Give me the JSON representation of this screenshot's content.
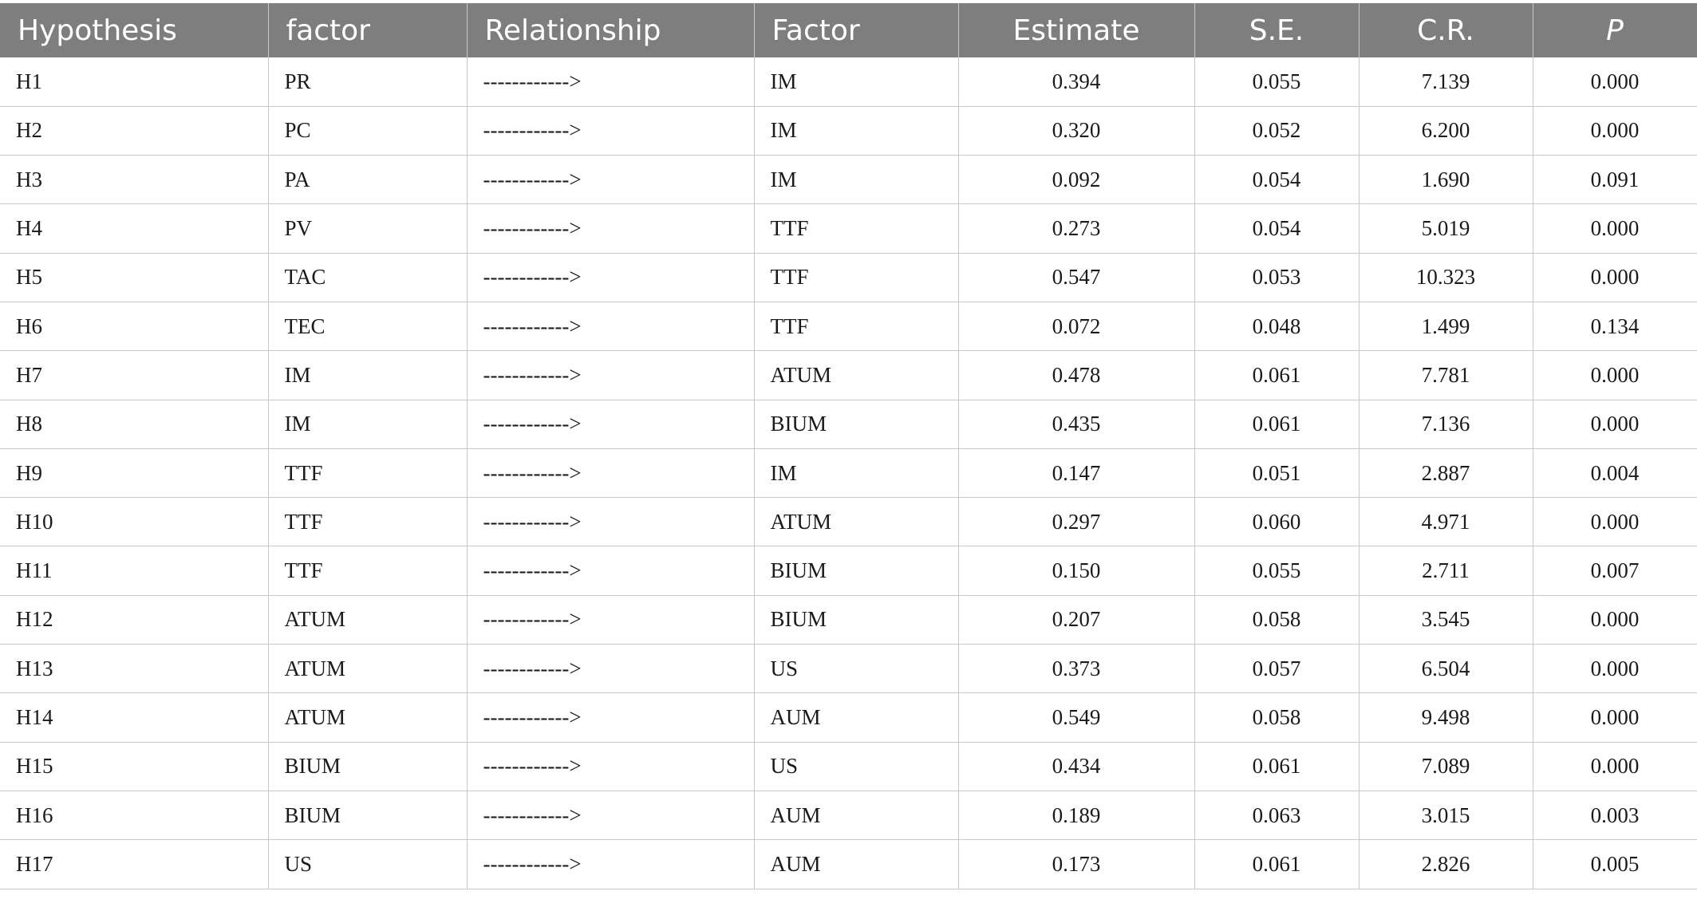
{
  "table": {
    "headers": [
      "Hypothesis",
      "factor",
      "Relationship",
      "Factor",
      "Estimate",
      "S.E.",
      "C.R.",
      "P"
    ],
    "rows": [
      [
        "H1",
        "PR",
        "------------>",
        "IM",
        "0.394",
        "0.055",
        "7.139",
        "0.000"
      ],
      [
        "H2",
        "PC",
        "------------>",
        "IM",
        "0.320",
        "0.052",
        "6.200",
        "0.000"
      ],
      [
        "H3",
        "PA",
        "------------>",
        "IM",
        "0.092",
        "0.054",
        "1.690",
        "0.091"
      ],
      [
        "H4",
        "PV",
        "------------>",
        "TTF",
        "0.273",
        "0.054",
        "5.019",
        "0.000"
      ],
      [
        "H5",
        "TAC",
        "------------>",
        "TTF",
        "0.547",
        "0.053",
        "10.323",
        "0.000"
      ],
      [
        "H6",
        "TEC",
        "------------>",
        "TTF",
        "0.072",
        "0.048",
        "1.499",
        "0.134"
      ],
      [
        "H7",
        "IM",
        "------------>",
        "ATUM",
        "0.478",
        "0.061",
        "7.781",
        "0.000"
      ],
      [
        "H8",
        "IM",
        "------------>",
        "BIUM",
        "0.435",
        "0.061",
        "7.136",
        "0.000"
      ],
      [
        "H9",
        "TTF",
        "------------>",
        "IM",
        "0.147",
        "0.051",
        "2.887",
        "0.004"
      ],
      [
        "H10",
        "TTF",
        "------------>",
        "ATUM",
        "0.297",
        "0.060",
        "4.971",
        "0.000"
      ],
      [
        "H11",
        "TTF",
        "------------>",
        "BIUM",
        "0.150",
        "0.055",
        "2.711",
        "0.007"
      ],
      [
        "H12",
        "ATUM",
        "------------>",
        "BIUM",
        "0.207",
        "0.058",
        "3.545",
        "0.000"
      ],
      [
        "H13",
        "ATUM",
        "------------>",
        "US",
        "0.373",
        "0.057",
        "6.504",
        "0.000"
      ],
      [
        "H14",
        "ATUM",
        "------------>",
        "AUM",
        "0.549",
        "0.058",
        "9.498",
        "0.000"
      ],
      [
        "H15",
        "BIUM",
        "------------>",
        "US",
        "0.434",
        "0.061",
        "7.089",
        "0.000"
      ],
      [
        "H16",
        "BIUM",
        "------------>",
        "AUM",
        "0.189",
        "0.063",
        "3.015",
        "0.003"
      ],
      [
        "H17",
        "US",
        "------------>",
        "AUM",
        "0.173",
        "0.061",
        "2.826",
        "0.005"
      ]
    ]
  }
}
